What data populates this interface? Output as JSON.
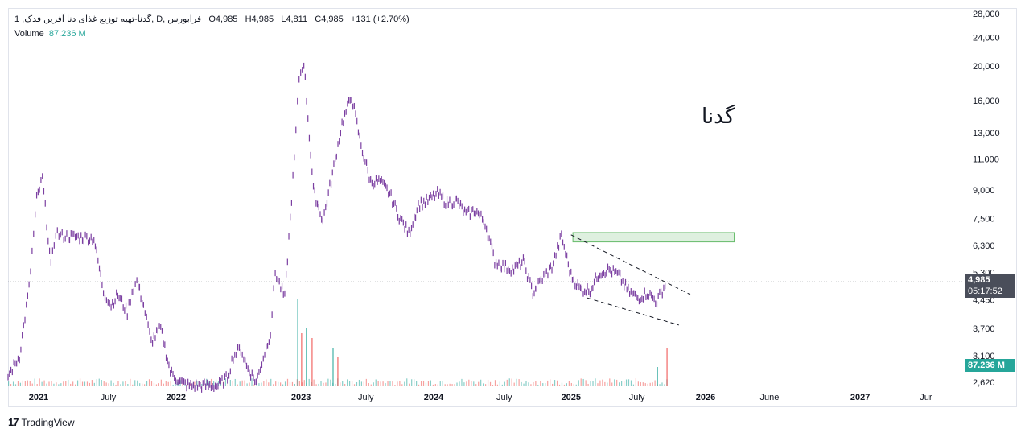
{
  "legend": {
    "symbol_line": "1 ,گدنا-تهیه توزیع غذای دنا آفرین فدک, D, فرابورس",
    "open": "O4,985",
    "high": "H4,985",
    "low": "L4,811",
    "close": "C4,985",
    "change": "+131 (+2.70%)",
    "volume_label": "Volume",
    "volume_value": "87.236 M"
  },
  "annotation_text": "گدنا",
  "price_badge": {
    "price": "4,985",
    "countdown": "05:17:52"
  },
  "volume_badge": "87.236 M",
  "brand": {
    "logo": "17",
    "name": "TradingView"
  },
  "colors": {
    "candle": "#7b3fa1",
    "vol_up": "#26a69a",
    "vol_down": "#ef5350",
    "rect_fill": "#c8e6c9",
    "rect_stroke": "#66bb6a"
  },
  "chart_data": {
    "type": "line",
    "title": "گدنا",
    "scale": "log",
    "ylim": [
      2550,
      29000
    ],
    "y_ticks": [
      "28,000",
      "24,000",
      "20,000",
      "16,000",
      "13,000",
      "11,000",
      "9,000",
      "7,500",
      "6,300",
      "5,300",
      "4,450",
      "3,700",
      "3,100",
      "2,620"
    ],
    "y_tick_values": [
      28000,
      24000,
      20000,
      16000,
      13000,
      11000,
      9000,
      7500,
      6300,
      5300,
      4450,
      3700,
      3100,
      2620
    ],
    "x_labels": [
      "2021",
      "July",
      "2022",
      "2023",
      "July",
      "2024",
      "July",
      "2025",
      "July",
      "2026",
      "June",
      "2027",
      "Jur"
    ],
    "x_label_bold": [
      true,
      false,
      true,
      true,
      false,
      true,
      false,
      true,
      false,
      true,
      false,
      true,
      false
    ],
    "x_label_pos": [
      0.032,
      0.105,
      0.176,
      0.307,
      0.375,
      0.446,
      0.52,
      0.59,
      0.659,
      0.731,
      0.798,
      0.893,
      0.962
    ],
    "series": [
      {
        "x": [
          0.0,
          0.012,
          0.022,
          0.03,
          0.036,
          0.045,
          0.05,
          0.055,
          0.06,
          0.09,
          0.1,
          0.108,
          0.115,
          0.125,
          0.13,
          0.135,
          0.142,
          0.15,
          0.16,
          0.17,
          0.18,
          0.19,
          0.2,
          0.21,
          0.22,
          0.23,
          0.236,
          0.244,
          0.25,
          0.26,
          0.275,
          0.28,
          0.29,
          0.3,
          0.305,
          0.31,
          0.32,
          0.33,
          0.34,
          0.35,
          0.36,
          0.37,
          0.38,
          0.39,
          0.4,
          0.41,
          0.42,
          0.43,
          0.44,
          0.45,
          0.46,
          0.47,
          0.48,
          0.49,
          0.5,
          0.51,
          0.52,
          0.53,
          0.54,
          0.55,
          0.56,
          0.57,
          0.58,
          0.59,
          0.6,
          0.61,
          0.62,
          0.63,
          0.64,
          0.65,
          0.66,
          0.67,
          0.68,
          0.69
        ],
        "y": [
          2720,
          3100,
          4800,
          8500,
          9700,
          5500,
          6900,
          6700,
          6700,
          6600,
          4700,
          4300,
          4600,
          4100,
          4700,
          5000,
          4300,
          3400,
          3700,
          2800,
          2620,
          2560,
          2560,
          2560,
          2560,
          2700,
          3100,
          3250,
          2900,
          2620,
          3600,
          5300,
          4500,
          11000,
          18500,
          20500,
          9000,
          7400,
          10000,
          13800,
          16500,
          12000,
          9500,
          9500,
          8800,
          7600,
          6800,
          8200,
          8400,
          8800,
          8300,
          8400,
          7700,
          7900,
          7300,
          5700,
          5500,
          5400,
          5700,
          4650,
          5100,
          5500,
          6700,
          5200,
          4750,
          4750,
          5300,
          5400,
          5200,
          4700,
          4500,
          4650,
          4400,
          4985
        ]
      }
    ],
    "volume": {
      "spikes_x": [
        0.303,
        0.307,
        0.312,
        0.318,
        0.34,
        0.345,
        0.68,
        0.69
      ],
      "spikes_v": [
        0.9,
        0.55,
        0.6,
        0.5,
        0.4,
        0.3,
        0.2,
        0.4
      ]
    },
    "trendlines": [
      {
        "x": [
          0.59,
          0.715
        ],
        "y": [
          6750,
          4600
        ]
      },
      {
        "x": [
          0.607,
          0.703
        ],
        "y": [
          4500,
          3780
        ]
      }
    ],
    "zone": {
      "x": [
        0.592,
        0.761
      ],
      "y": [
        6450,
        6850
      ]
    },
    "last_price": 4985
  }
}
